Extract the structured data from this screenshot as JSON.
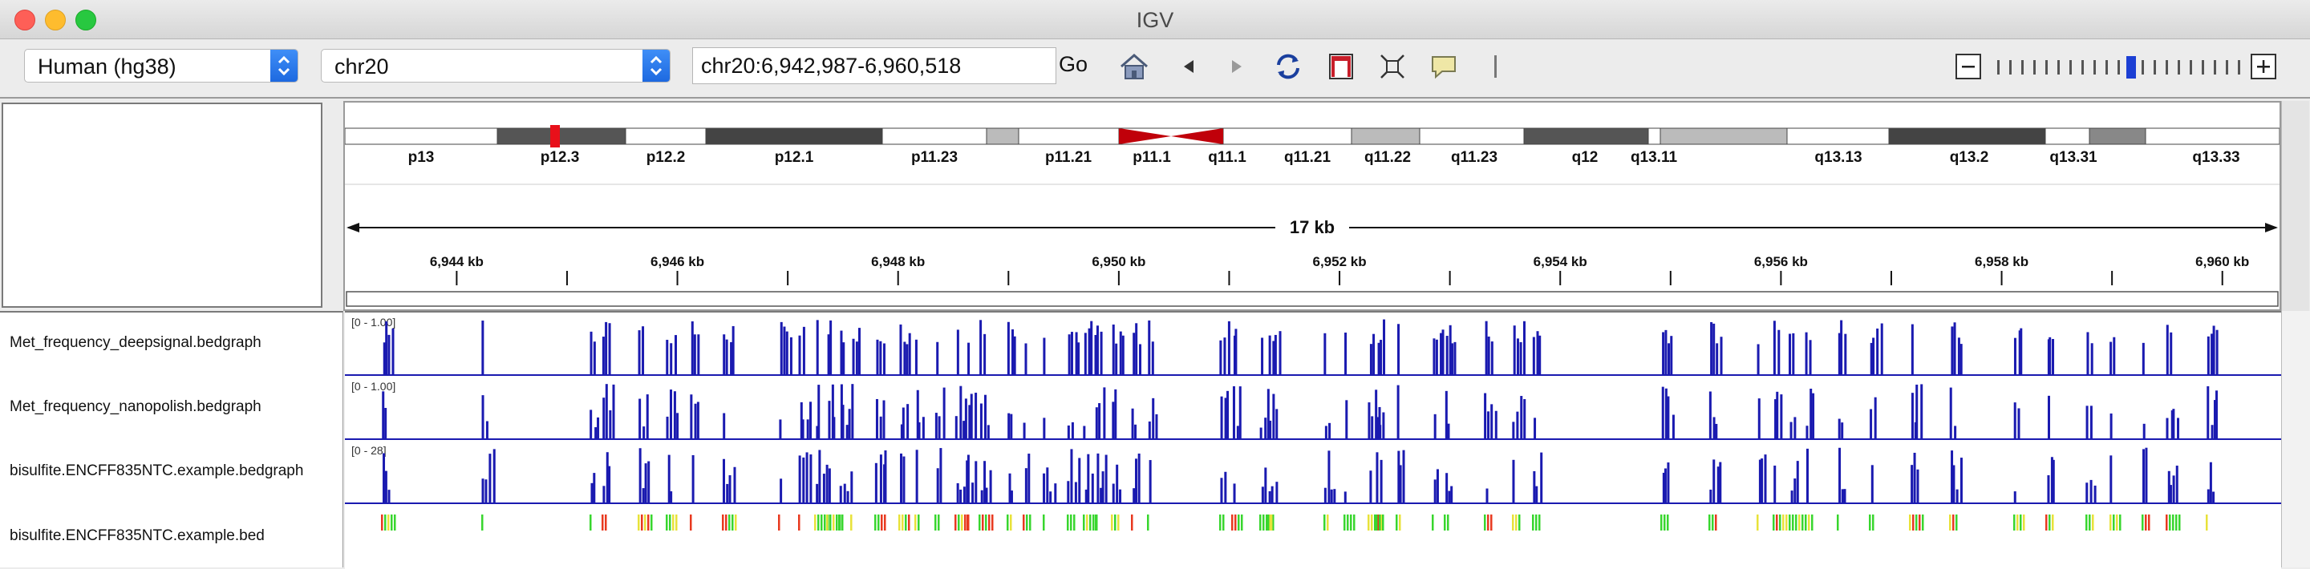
{
  "window": {
    "title": "IGV"
  },
  "toolbar": {
    "genome": "Human (hg38)",
    "chromosome": "chr20",
    "locus": "chr20:6,942,987-6,960,518",
    "go_label": "Go",
    "accent_color": "#2b7bf0"
  },
  "ideogram": {
    "bands": [
      "p13",
      "p12.3",
      "p12.2",
      "p12.1",
      "p11.23",
      "p11.21",
      "p11.1",
      "q11.1",
      "q11.21",
      "q11.22",
      "q11.23",
      "q12",
      "q13.11",
      "q13.13",
      "q13.2",
      "q13.31",
      "q13.33"
    ],
    "centromere_color": "#c0000a"
  },
  "ruler": {
    "span_label": "17 kb",
    "ticks": [
      "6,944 kb",
      "6,946 kb",
      "6,948 kb",
      "6,950 kb",
      "6,952 kb",
      "6,954 kb",
      "6,956 kb",
      "6,958 kb",
      "6,960 kb"
    ]
  },
  "tracks": [
    {
      "name": "Met_frequency_deepsignal.bedgraph",
      "range": "[0 - 1.00]"
    },
    {
      "name": "Met_frequency_nanopolish.bedgraph",
      "range": "[0 - 1.00]"
    },
    {
      "name": "bisulfite.ENCFF835NTC.example.bedgraph",
      "range": "[0 - 28]"
    },
    {
      "name": "bisulfite.ENCFF835NTC.example.bed",
      "range": ""
    }
  ],
  "colors": {
    "data_bar": "#1a1ab0",
    "bed_low": "#38d62e",
    "bed_mid": "#e8e23a",
    "bed_high": "#e8391f"
  }
}
